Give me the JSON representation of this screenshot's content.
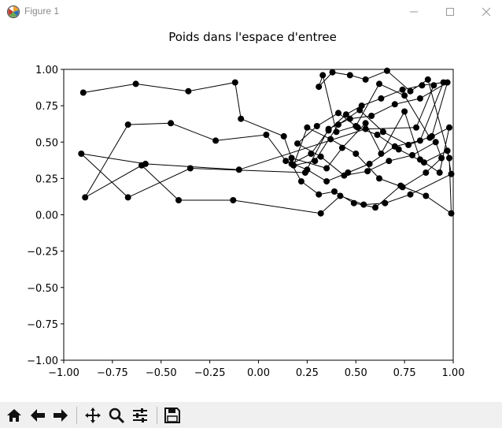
{
  "window": {
    "title": "Figure 1",
    "controls": [
      "minimize",
      "maximize",
      "close"
    ]
  },
  "toolbar": {
    "buttons": [
      {
        "name": "home",
        "icon": "home-icon"
      },
      {
        "name": "back",
        "icon": "arrow-left-icon"
      },
      {
        "name": "forward",
        "icon": "arrow-right-icon"
      },
      {
        "name": "pan",
        "icon": "move-icon"
      },
      {
        "name": "zoom",
        "icon": "magnifier-icon"
      },
      {
        "name": "configure-subplots",
        "icon": "sliders-icon"
      },
      {
        "name": "save",
        "icon": "floppy-disk-icon"
      }
    ]
  },
  "chart_data": {
    "type": "line",
    "title": "Poids dans l'espace d'entree",
    "xlabel": "",
    "ylabel": "",
    "xlim": [
      -1.0,
      1.0
    ],
    "ylim": [
      -1.0,
      1.0
    ],
    "xticks": [
      "−1.00",
      "−0.75",
      "−0.50",
      "−0.25",
      "0.00",
      "0.25",
      "0.50",
      "0.75",
      "1.00"
    ],
    "yticks": [
      "1.00",
      "0.75",
      "0.50",
      "0.25",
      "0.00",
      "−0.25",
      "−0.50",
      "−0.75",
      "−1.00"
    ],
    "grid": false,
    "legend": "none",
    "marker": "circle",
    "color": "#000000",
    "x": [
      -0.9,
      -0.63,
      -0.36,
      -0.12,
      -0.09,
      0.13,
      0.17,
      0.35,
      0.43,
      0.55,
      0.63,
      0.75,
      0.83,
      0.93,
      0.98,
      0.88,
      0.75,
      0.62,
      0.5,
      0.4,
      0.33,
      0.31,
      0.38,
      0.47,
      0.55,
      0.66,
      0.78,
      0.87,
      0.98,
      0.99,
      0.86,
      0.73,
      0.6,
      0.49,
      0.39,
      0.31,
      0.22,
      0.17,
      0.27,
      0.36,
      0.45,
      0.53,
      0.63,
      0.74,
      0.84,
      0.95,
      0.83,
      0.7,
      0.57,
      0.46,
      0.35,
      0.25,
      0.14,
      0.04,
      -0.22,
      -0.45,
      -0.67,
      -0.89,
      -0.6,
      -0.41,
      -0.13,
      0.32,
      0.42,
      0.54,
      0.65,
      0.78,
      0.99,
      0.97,
      0.85,
      0.72,
      0.61,
      0.51,
      0.41,
      0.3,
      0.2,
      0.32,
      0.44,
      0.56,
      0.67,
      0.79,
      0.91,
      0.94,
      0.86,
      0.74,
      0.62,
      0.5,
      0.37,
      0.25,
      0.18,
      0.29,
      0.41,
      0.52,
      0.64,
      0.77,
      0.89,
      0.97,
      0.83,
      0.7,
      0.58,
      0.47,
      0.36,
      0.24,
      -0.35,
      -0.67,
      -0.91,
      -0.58,
      -0.1,
      0.55,
      0.81,
      0.9
    ],
    "y": [
      0.84,
      0.9,
      0.85,
      0.91,
      0.66,
      0.54,
      0.39,
      0.32,
      0.46,
      0.63,
      0.42,
      0.71,
      0.38,
      0.29,
      0.6,
      0.53,
      0.82,
      0.9,
      0.61,
      0.57,
      0.96,
      0.88,
      0.98,
      0.96,
      0.93,
      0.99,
      0.85,
      0.93,
      0.39,
      0.01,
      0.13,
      0.2,
      0.05,
      0.08,
      0.16,
      0.14,
      0.23,
      0.35,
      0.42,
      0.58,
      0.69,
      0.75,
      0.8,
      0.86,
      0.89,
      0.91,
      0.51,
      0.47,
      0.35,
      0.29,
      0.23,
      0.31,
      0.37,
      0.55,
      0.51,
      0.63,
      0.62,
      0.12,
      0.34,
      0.1,
      0.1,
      0.01,
      0.13,
      0.07,
      0.08,
      0.14,
      0.28,
      0.44,
      0.36,
      0.45,
      0.55,
      0.6,
      0.7,
      0.61,
      0.49,
      0.4,
      0.27,
      0.3,
      0.37,
      0.41,
      0.5,
      0.39,
      0.29,
      0.19,
      0.25,
      0.42,
      0.52,
      0.6,
      0.34,
      0.37,
      0.62,
      0.72,
      0.57,
      0.48,
      0.54,
      0.91,
      0.8,
      0.76,
      0.68,
      0.66,
      0.59,
      0.29,
      0.32,
      0.12,
      0.42,
      0.35,
      0.31,
      0.59,
      0.6,
      0.89
    ]
  }
}
